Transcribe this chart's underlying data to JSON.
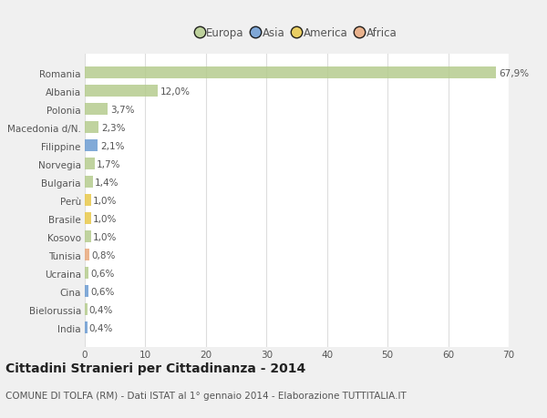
{
  "categories": [
    "India",
    "Bielorussia",
    "Cina",
    "Ucraina",
    "Tunisia",
    "Kosovo",
    "Brasile",
    "Perù",
    "Bulgaria",
    "Norvegia",
    "Filippine",
    "Macedonia d/N.",
    "Polonia",
    "Albania",
    "Romania"
  ],
  "values": [
    0.4,
    0.4,
    0.6,
    0.6,
    0.8,
    1.0,
    1.0,
    1.0,
    1.4,
    1.7,
    2.1,
    2.3,
    3.7,
    12.0,
    67.9
  ],
  "labels": [
    "0,4%",
    "0,4%",
    "0,6%",
    "0,6%",
    "0,8%",
    "1,0%",
    "1,0%",
    "1,0%",
    "1,4%",
    "1,7%",
    "2,1%",
    "2,3%",
    "3,7%",
    "12,0%",
    "67,9%"
  ],
  "colors": [
    "#6b9bd2",
    "#b5cc8e",
    "#6b9bd2",
    "#b5cc8e",
    "#e8a87c",
    "#b5cc8e",
    "#e8c84a",
    "#e8c84a",
    "#b5cc8e",
    "#b5cc8e",
    "#6b9bd2",
    "#b5cc8e",
    "#b5cc8e",
    "#b5cc8e",
    "#b5cc8e"
  ],
  "continent": [
    "Asia",
    "Europa",
    "Asia",
    "Europa",
    "Africa",
    "Europa",
    "America",
    "America",
    "Europa",
    "Europa",
    "Asia",
    "Europa",
    "Europa",
    "Europa",
    "Europa"
  ],
  "legend_labels": [
    "Europa",
    "Asia",
    "America",
    "Africa"
  ],
  "legend_colors": [
    "#b5cc8e",
    "#6b9bd2",
    "#e8c84a",
    "#e8a87c"
  ],
  "title": "Cittadini Stranieri per Cittadinanza - 2014",
  "subtitle": "COMUNE DI TOLFA (RM) - Dati ISTAT al 1° gennaio 2014 - Elaborazione TUTTITALIA.IT",
  "xlim": [
    0,
    70
  ],
  "xticks": [
    0,
    10,
    20,
    30,
    40,
    50,
    60,
    70
  ],
  "bar_height": 0.65,
  "background_color": "#f0f0f0",
  "plot_background": "#ffffff",
  "grid_color": "#dddddd",
  "label_fontsize": 7.5,
  "tick_fontsize": 7.5,
  "title_fontsize": 10,
  "subtitle_fontsize": 7.5
}
